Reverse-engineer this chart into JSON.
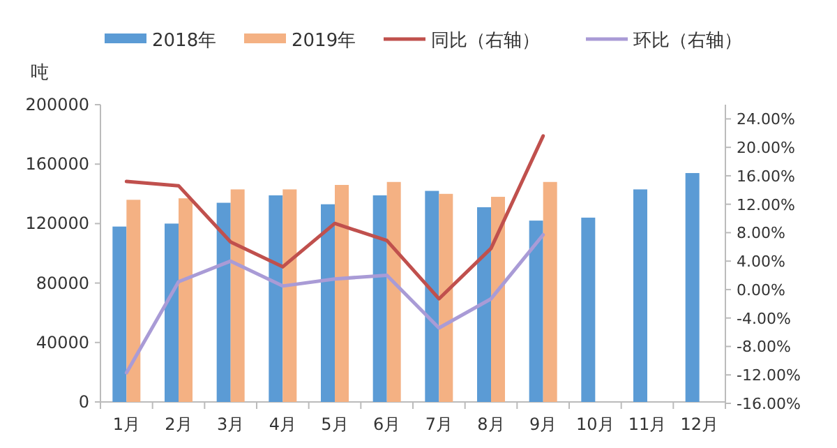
{
  "chart_data": {
    "type": "bar",
    "ylabel": "吨",
    "categories": [
      "1月",
      "2月",
      "3月",
      "4月",
      "5月",
      "6月",
      "7月",
      "8月",
      "9月",
      "10月",
      "11月",
      "12月"
    ],
    "series": [
      {
        "name": "2018年",
        "color": "#5b9bd5",
        "values": [
          118000,
          120000,
          134000,
          139000,
          133000,
          139000,
          142000,
          131000,
          122000,
          124000,
          143000,
          154000
        ]
      },
      {
        "name": "2019年",
        "color": "#f4b183",
        "values": [
          136000,
          137000,
          143000,
          143000,
          146000,
          148000,
          140000,
          138000,
          148000,
          null,
          null,
          null
        ]
      },
      {
        "name": "同比（右轴）",
        "type": "line",
        "axis": "y2",
        "color": "#c0504d",
        "values": [
          15.2,
          14.6,
          6.7,
          3.2,
          9.3,
          6.9,
          -1.3,
          5.8,
          21.6,
          null,
          null,
          null
        ]
      },
      {
        "name": "环比（右轴）",
        "type": "line",
        "axis": "y2",
        "color": "#a99bd6",
        "values": [
          -11.7,
          1.1,
          4.0,
          0.5,
          1.5,
          2.0,
          -5.4,
          -1.3,
          7.7,
          null,
          null,
          null
        ]
      }
    ],
    "ylim": [
      0,
      200000
    ],
    "yticks": [
      0,
      40000,
      80000,
      120000,
      160000,
      200000
    ],
    "y2lim": [
      -16,
      26
    ],
    "y2ticks": [
      {
        "value": -16,
        "label": "-16.00%"
      },
      {
        "value": -12,
        "label": "-12.00%"
      },
      {
        "value": -8,
        "label": "-8.00%"
      },
      {
        "value": -4,
        "label": "-4.00%"
      },
      {
        "value": 0,
        "label": "0.00%"
      },
      {
        "value": 4,
        "label": "4.00%"
      },
      {
        "value": 8,
        "label": "8.00%"
      },
      {
        "value": 12,
        "label": "12.00%"
      },
      {
        "value": 16,
        "label": "16.00%"
      },
      {
        "value": 20,
        "label": "20.00%"
      },
      {
        "value": 24,
        "label": "24.00%"
      }
    ],
    "legend": "top",
    "grid": false
  }
}
